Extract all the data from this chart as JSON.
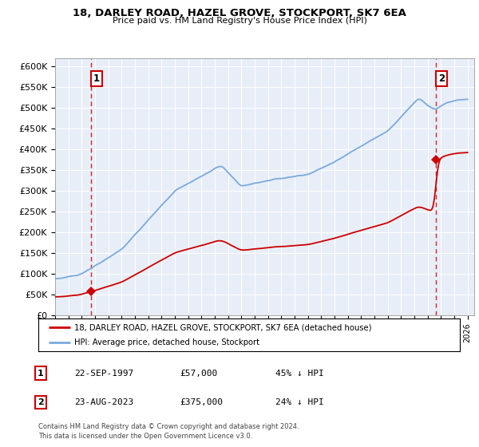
{
  "title_line1": "18, DARLEY ROAD, HAZEL GROVE, STOCKPORT, SK7 6EA",
  "title_line2": "Price paid vs. HM Land Registry's House Price Index (HPI)",
  "ylim": [
    0,
    620000
  ],
  "yticks": [
    0,
    50000,
    100000,
    150000,
    200000,
    250000,
    300000,
    350000,
    400000,
    450000,
    500000,
    550000,
    600000
  ],
  "ytick_labels": [
    "£0",
    "£50K",
    "£100K",
    "£150K",
    "£200K",
    "£250K",
    "£300K",
    "£350K",
    "£400K",
    "£450K",
    "£500K",
    "£550K",
    "£600K"
  ],
  "purchase1_date": 1997.73,
  "purchase1_price": 57000,
  "purchase2_date": 2023.645,
  "purchase2_price": 375000,
  "hpi_color": "#7aaadd",
  "sale_color": "#cc0000",
  "background_color": "#e8eef8",
  "legend_label1": "18, DARLEY ROAD, HAZEL GROVE, STOCKPORT, SK7 6EA (detached house)",
  "legend_label2": "HPI: Average price, detached house, Stockport",
  "annotation1_label": "1",
  "annotation2_label": "2",
  "note1_date": "22-SEP-1997",
  "note1_price": "£57,000",
  "note1_hpi": "45% ↓ HPI",
  "note2_date": "23-AUG-2023",
  "note2_price": "£375,000",
  "note2_hpi": "24% ↓ HPI",
  "footer": "Contains HM Land Registry data © Crown copyright and database right 2024.\nThis data is licensed under the Open Government Licence v3.0."
}
